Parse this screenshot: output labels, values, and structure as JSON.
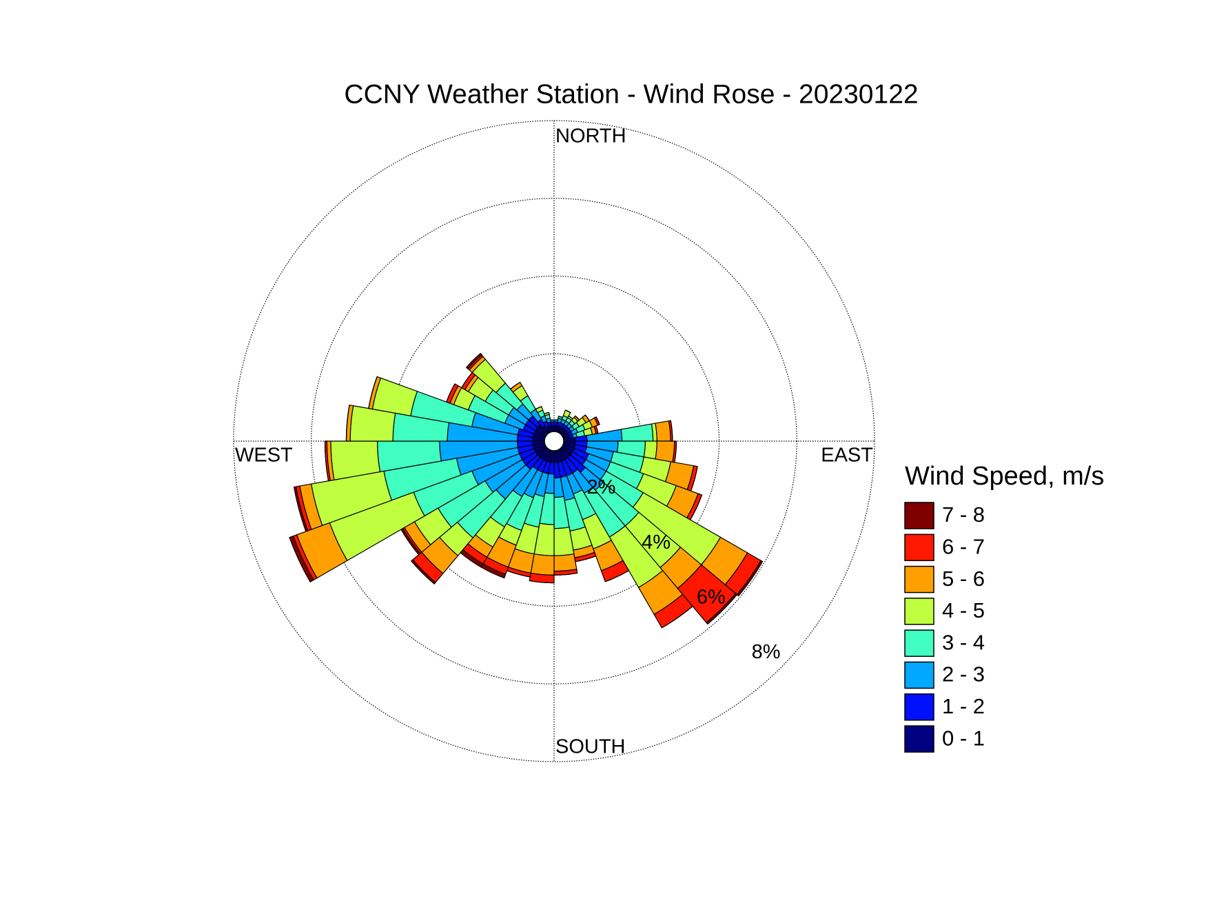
{
  "chart_data": {
    "type": "windrose",
    "title": "CCNY Weather Station - Wind Rose - 20230122",
    "direction_labels": [
      "NORTH",
      "EAST",
      "SOUTH",
      "WEST"
    ],
    "legend_title": "Wind Speed, m/s",
    "x": [
      5,
      15,
      25,
      35,
      45,
      55,
      65,
      75,
      85,
      95,
      105,
      115,
      125,
      135,
      145,
      155,
      165,
      175,
      185,
      195,
      205,
      215,
      225,
      235,
      245,
      255,
      265,
      275,
      285,
      295,
      305,
      315,
      325,
      335,
      345,
      355
    ],
    "rlim": [
      0,
      8
    ],
    "rticks": [
      {
        "value": 2,
        "label": "2%"
      },
      {
        "value": 4,
        "label": "4%"
      },
      {
        "value": 6,
        "label": "6%"
      },
      {
        "value": 8,
        "label": "8%"
      }
    ],
    "grid": true,
    "series": [
      {
        "name": "0 - 1",
        "color": "#000080",
        "values": [
          0.15,
          0.15,
          0.15,
          0.15,
          0.15,
          0.15,
          0.15,
          0.15,
          0.3,
          0.3,
          0.3,
          0.3,
          0.3,
          0.3,
          0.3,
          0.3,
          0.3,
          0.3,
          0.3,
          0.3,
          0.3,
          0.3,
          0.3,
          0.3,
          0.3,
          0.3,
          0.3,
          0.3,
          0.3,
          0.3,
          0.3,
          0.3,
          0.2,
          0.15,
          0.15,
          0.15
        ]
      },
      {
        "name": "1 - 2",
        "color": "#0010ff",
        "values": [
          0.1,
          0.1,
          0.1,
          0.1,
          0.1,
          0.1,
          0.1,
          0.1,
          0.3,
          0.3,
          0.3,
          0.4,
          0.4,
          0.5,
          0.4,
          0.4,
          0.4,
          0.4,
          0.3,
          0.3,
          0.3,
          0.3,
          0.4,
          0.4,
          0.4,
          0.4,
          0.4,
          0.4,
          0.4,
          0.3,
          0.3,
          0.3,
          0.2,
          0.15,
          0.1,
          0.1
        ]
      },
      {
        "name": "2 - 3",
        "color": "#00a8ff",
        "values": [
          0.05,
          0.1,
          0.1,
          0.1,
          0.1,
          0.1,
          0.15,
          0.1,
          0.9,
          0.8,
          0.7,
          0.6,
          0.6,
          0.6,
          0.6,
          0.5,
          0.6,
          0.5,
          0.5,
          0.6,
          0.7,
          0.8,
          1.0,
          1.1,
          1.3,
          1.6,
          2.0,
          1.8,
          1.2,
          0.5,
          0.5,
          0.4,
          0.3,
          0.15,
          0.1,
          0.05
        ]
      },
      {
        "name": "3 - 4",
        "color": "#40ffc0",
        "values": [
          0,
          0.05,
          0.1,
          0.1,
          0.1,
          0.15,
          0.2,
          0.2,
          0.8,
          0.7,
          0.8,
          0.9,
          1.1,
          1.2,
          1.3,
          0.7,
          0.8,
          0.8,
          0.8,
          0.8,
          0.9,
          0.9,
          1.3,
          1.4,
          1.6,
          1.9,
          1.6,
          1.4,
          1.6,
          1.0,
          0.7,
          0.7,
          0.4,
          0.15,
          0.1,
          0
        ]
      },
      {
        "name": "4 - 5",
        "color": "#c0ff40",
        "values": [
          0,
          0,
          0.15,
          0.05,
          0.1,
          0.2,
          0.2,
          0.2,
          0.1,
          0.3,
          0.7,
          0.9,
          2.3,
          1.4,
          1.5,
          0.8,
          0.5,
          0.7,
          0.8,
          0.7,
          0.4,
          0.6,
          0.6,
          0.7,
          2.3,
          1.9,
          1.2,
          1.1,
          1.0,
          0.4,
          0.5,
          0.8,
          0.3,
          0.1,
          0.05,
          0
        ]
      },
      {
        "name": "5 - 6",
        "color": "#ffa000",
        "values": [
          0,
          0,
          0,
          0,
          0.05,
          0.1,
          0.15,
          0.1,
          0.35,
          0.45,
          0.6,
          0.6,
          0.8,
          0.7,
          0.8,
          0.6,
          0.2,
          0.4,
          0.5,
          0.5,
          0.6,
          0.3,
          0.6,
          0.3,
          0.9,
          0.3,
          0.1,
          0.1,
          0.1,
          0.1,
          0.1,
          0.1,
          0.1,
          0,
          0,
          0
        ]
      },
      {
        "name": "6 - 7",
        "color": "#ff1800",
        "values": [
          0,
          0,
          0,
          0,
          0,
          0,
          0.05,
          0.05,
          0.05,
          0.05,
          0.1,
          0.1,
          0.4,
          1.15,
          0.4,
          0.3,
          0.1,
          0.1,
          0.2,
          0.1,
          0.2,
          0.2,
          0.3,
          0.05,
          0.1,
          0.1,
          0.05,
          0,
          0,
          0.1,
          0.1,
          0.05,
          0,
          0,
          0,
          0
        ]
      },
      {
        "name": "7 - 8",
        "color": "#800000",
        "values": [
          0,
          0,
          0,
          0,
          0,
          0,
          0,
          0,
          0,
          0,
          0,
          0,
          0.05,
          0.05,
          0,
          0,
          0,
          0,
          0,
          0,
          0.1,
          0.1,
          0.05,
          0.05,
          0.1,
          0.05,
          0,
          0,
          0,
          0,
          0,
          0.05,
          0,
          0,
          0,
          0
        ]
      }
    ]
  }
}
